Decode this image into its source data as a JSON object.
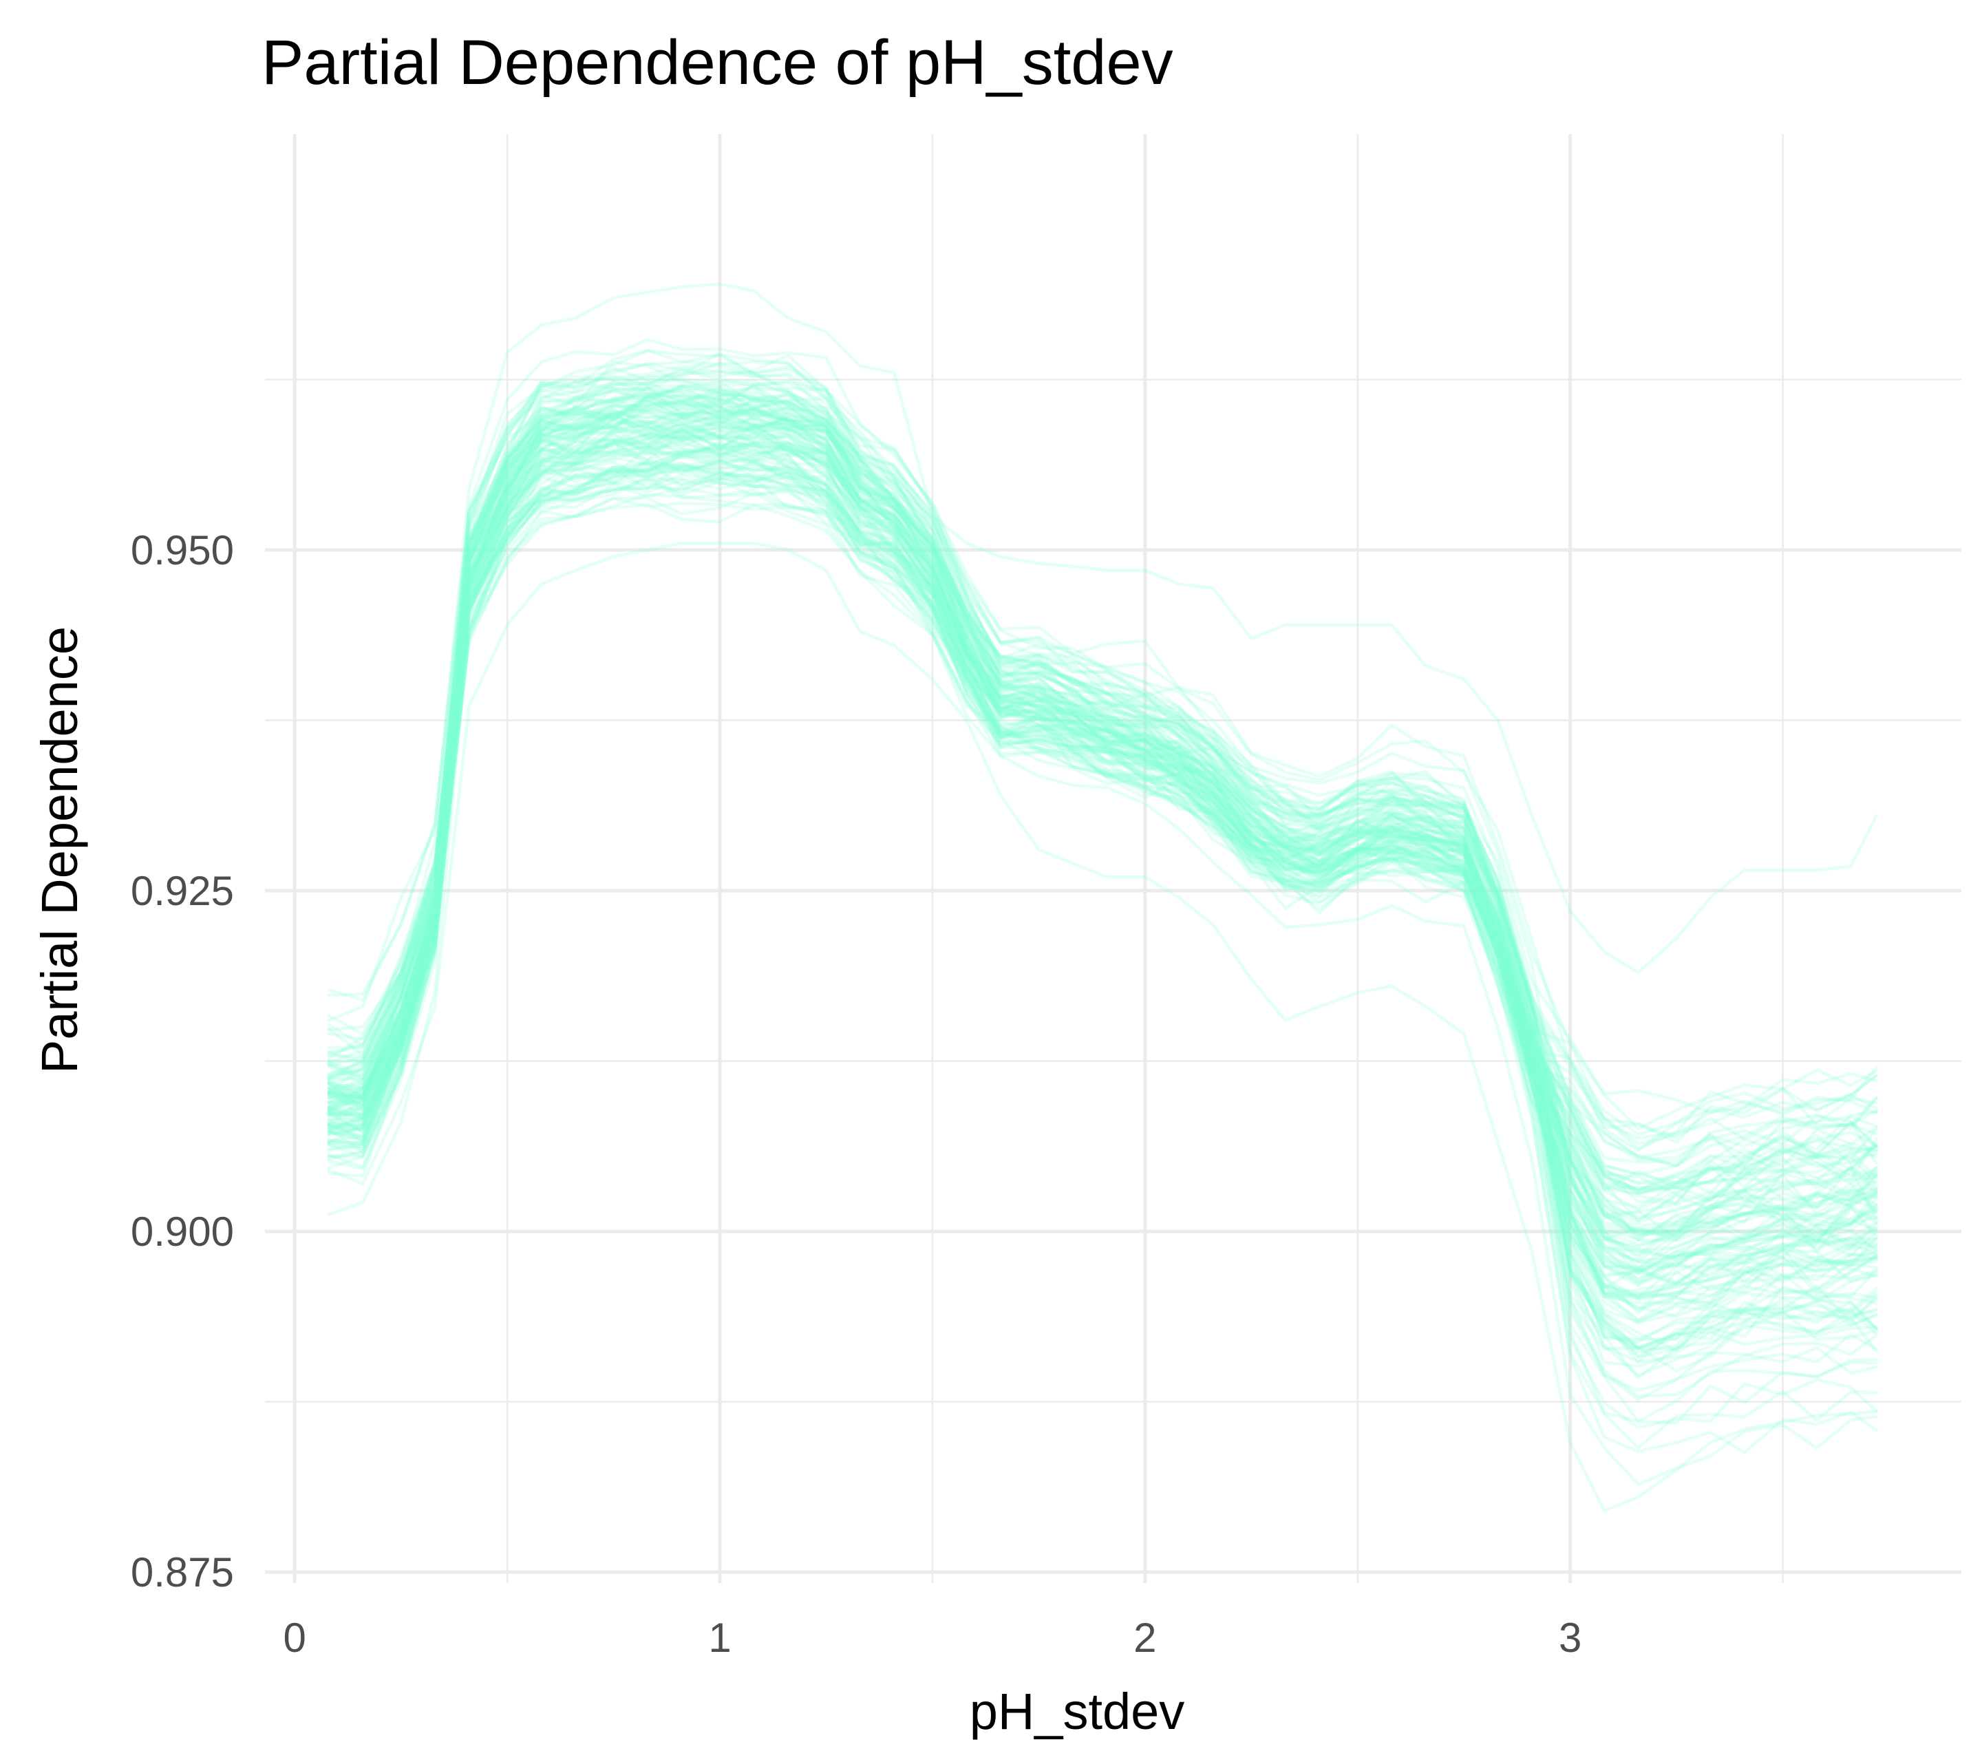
{
  "chart_data": {
    "type": "line",
    "title": "Partial Dependence of pH_stdev",
    "xlabel": "pH_stdev",
    "ylabel": "Partial Dependence",
    "xlim": [
      -0.07,
      3.92
    ],
    "ylim": [
      0.8742,
      0.9805
    ],
    "x_ticks": [
      0,
      1,
      2,
      3
    ],
    "x_tick_labels": [
      "0",
      "1",
      "2",
      "3"
    ],
    "y_ticks": [
      0.875,
      0.9,
      0.925,
      0.95
    ],
    "y_tick_labels": [
      "0.875",
      "0.900",
      "0.925",
      "0.950"
    ],
    "grid": true,
    "legend": "none",
    "line_color": "#7FFFD4",
    "line_alpha": 0.22,
    "n_series": 120,
    "x": [
      0.08,
      0.16,
      0.25,
      0.33,
      0.41,
      0.5,
      0.58,
      0.66,
      0.75,
      0.83,
      0.91,
      1.0,
      1.08,
      1.16,
      1.25,
      1.33,
      1.41,
      1.5,
      1.58,
      1.66,
      1.75,
      1.83,
      1.91,
      2.0,
      2.08,
      2.16,
      2.25,
      2.33,
      2.41,
      2.5,
      2.58,
      2.66,
      2.75,
      2.83,
      2.91,
      3.0,
      3.08,
      3.16,
      3.25,
      3.33,
      3.41,
      3.5,
      3.58,
      3.66,
      3.72
    ],
    "mean_curve": [
      0.9095,
      0.9095,
      0.9155,
      0.9235,
      0.9475,
      0.9535,
      0.9568,
      0.9572,
      0.958,
      0.9582,
      0.9583,
      0.9581,
      0.958,
      0.9578,
      0.9565,
      0.953,
      0.9515,
      0.948,
      0.9425,
      0.9385,
      0.9385,
      0.9375,
      0.9365,
      0.9355,
      0.9345,
      0.9325,
      0.9295,
      0.928,
      0.9275,
      0.9288,
      0.9295,
      0.929,
      0.928,
      0.922,
      0.9135,
      0.9035,
      0.899,
      0.898,
      0.8985,
      0.8995,
      0.9,
      0.9005,
      0.9005,
      0.9008,
      0.901
    ],
    "representative_curves": [
      {
        "values": [
          0.9065,
          0.9065,
          0.9125,
          0.9215,
          0.9475,
          0.9505,
          0.9535,
          0.9543,
          0.9549,
          0.9551,
          0.9552,
          0.9549,
          0.9547,
          0.9545,
          0.9535,
          0.9505,
          0.9505,
          0.9455,
          0.9395,
          0.9355,
          0.9355,
          0.9345,
          0.9335,
          0.9325,
          0.9315,
          0.9295,
          0.9265,
          0.9255,
          0.9245,
          0.9258,
          0.9265,
          0.926,
          0.925,
          0.919,
          0.9105,
          0.9005,
          0.896,
          0.895,
          0.8955,
          0.8965,
          0.897,
          0.8975,
          0.8975,
          0.8978,
          0.898
        ]
      },
      {
        "values": [
          0.9125,
          0.9125,
          0.9185,
          0.9255,
          0.9495,
          0.9565,
          0.9598,
          0.9602,
          0.961,
          0.9612,
          0.9613,
          0.9611,
          0.961,
          0.9608,
          0.9595,
          0.956,
          0.9545,
          0.951,
          0.9455,
          0.9415,
          0.9415,
          0.9405,
          0.9395,
          0.9385,
          0.9375,
          0.9355,
          0.9325,
          0.931,
          0.9305,
          0.9318,
          0.9325,
          0.932,
          0.931,
          0.925,
          0.9165,
          0.9065,
          0.902,
          0.901,
          0.9015,
          0.9025,
          0.903,
          0.9035,
          0.9035,
          0.9038,
          0.904
        ]
      },
      {
        "values": [
          0.9155,
          0.9165,
          0.9245,
          0.9295,
          0.9545,
          0.9645,
          0.9665,
          0.967,
          0.9685,
          0.9689,
          0.9693,
          0.9695,
          0.969,
          0.967,
          0.966,
          0.9635,
          0.963,
          0.9525,
          0.9505,
          0.9495,
          0.949,
          0.9488,
          0.9485,
          0.9485,
          0.9475,
          0.9472,
          0.9435,
          0.9445,
          0.9445,
          0.9445,
          0.9445,
          0.9415,
          0.9405,
          0.9375,
          0.9305,
          0.9235,
          0.9205,
          0.919,
          0.9215,
          0.9245,
          0.9265,
          0.9265,
          0.9265,
          0.9268,
          0.9305
        ]
      },
      {
        "values": [
          0.9045,
          0.9035,
          0.9095,
          0.9165,
          0.9385,
          0.9445,
          0.9475,
          0.9485,
          0.9495,
          0.95,
          0.9505,
          0.9505,
          0.9505,
          0.95,
          0.9485,
          0.944,
          0.943,
          0.9405,
          0.9375,
          0.932,
          0.928,
          0.927,
          0.926,
          0.926,
          0.9245,
          0.9225,
          0.9185,
          0.9155,
          0.9165,
          0.9175,
          0.918,
          0.9165,
          0.9145,
          0.9065,
          0.8985,
          0.8845,
          0.8795,
          0.8805,
          0.8825,
          0.8845,
          0.8855,
          0.886,
          0.8865,
          0.8866,
          0.8868
        ]
      }
    ]
  }
}
